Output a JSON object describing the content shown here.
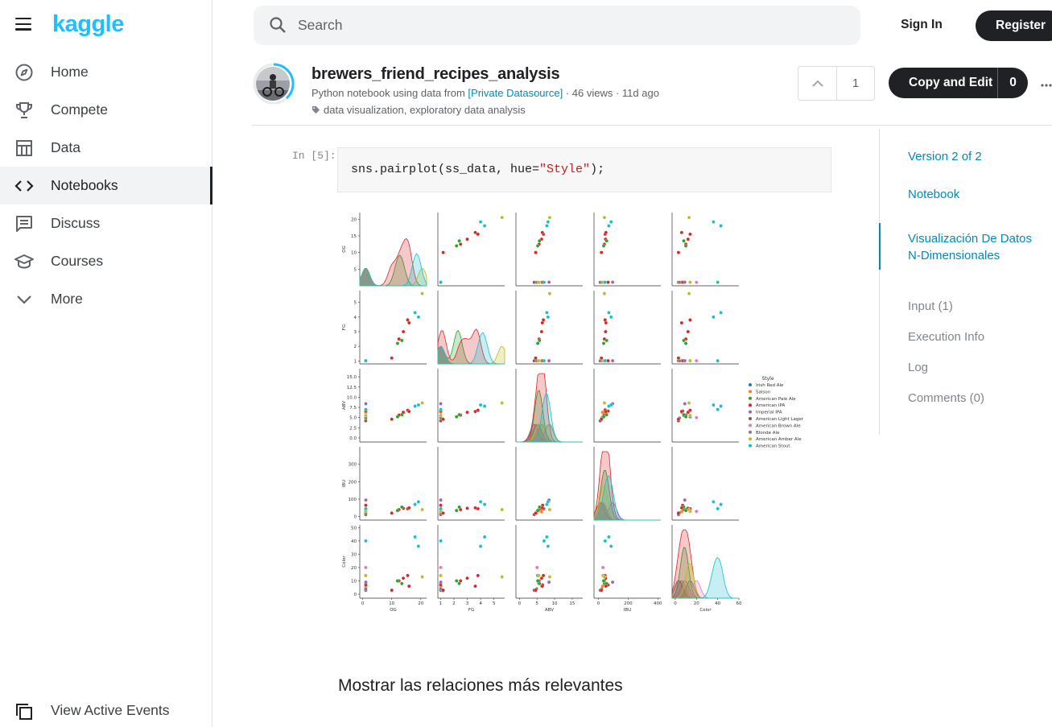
{
  "brand": {
    "logo": "kaggle"
  },
  "nav": {
    "items": [
      {
        "label": "Home",
        "icon": "compass-icon",
        "active": false
      },
      {
        "label": "Compete",
        "icon": "trophy-icon",
        "active": false
      },
      {
        "label": "Data",
        "icon": "table-icon",
        "active": false
      },
      {
        "label": "Notebooks",
        "icon": "code-icon",
        "active": true
      },
      {
        "label": "Discuss",
        "icon": "comment-icon",
        "active": false
      },
      {
        "label": "Courses",
        "icon": "school-icon",
        "active": false
      },
      {
        "label": "More",
        "icon": "chevron-down-icon",
        "active": false
      }
    ],
    "view_active_events": "View Active Events"
  },
  "header": {
    "search_placeholder": "Search",
    "sign_in": "Sign In",
    "register": "Register"
  },
  "notebook": {
    "title": "brewers_friend_recipes_analysis",
    "meta_prefix": "Python notebook using data from",
    "datasource": "[Private Datasource]",
    "meta_suffix": "· 46 views · 11d ago",
    "tags": "data visualization, exploratory data analysis",
    "votes": "1",
    "copy_edit_label": "Copy and Edit",
    "copy_edit_count": "0"
  },
  "toc": {
    "version": "Version 2 of 2",
    "notebook": "Notebook",
    "section": "Visualización De Datos N-Dimensionales",
    "input": "Input (1)",
    "execution_info": "Execution Info",
    "log": "Log",
    "comments": "Comments (0)"
  },
  "cell": {
    "prompt": "In [5]:",
    "code_prefix": "sns.pairplot(ss_data, hue=",
    "code_string": "\"Style\"",
    "code_suffix": ");"
  },
  "chart_data": {
    "type": "scatter",
    "variables": [
      "OG",
      "FG",
      "ABV",
      "IBU",
      "Color"
    ],
    "legend_title": "Style",
    "legend": [
      {
        "name": "Irish Red Ale",
        "color": "#1f77b4"
      },
      {
        "name": "Saison",
        "color": "#ff7f0e"
      },
      {
        "name": "American Pale Ale",
        "color": "#2ca02c"
      },
      {
        "name": "American IPA",
        "color": "#d62728"
      },
      {
        "name": "Imperial IPA",
        "color": "#9467bd"
      },
      {
        "name": "American Light Lager",
        "color": "#8c564b"
      },
      {
        "name": "American Brown Ale",
        "color": "#e377c2"
      },
      {
        "name": "Blonde Ale",
        "color": "#7f7f7f"
      },
      {
        "name": "American Amber Ale",
        "color": "#bcbd22"
      },
      {
        "name": "American Stout",
        "color": "#17becf"
      }
    ],
    "legend_placement": "right",
    "ticks": {
      "OG": [
        "5",
        "10",
        "15",
        "20"
      ],
      "FG": [
        "1",
        "2",
        "3",
        "4",
        "5"
      ],
      "ABV": [
        "0.0",
        "2.5",
        "5.0",
        "7.5",
        "10.0",
        "12.5",
        "15.0"
      ],
      "IBU": [
        "0",
        "100",
        "200",
        "300"
      ],
      "Color": [
        "0",
        "10",
        "20",
        "30",
        "40",
        "50"
      ]
    },
    "x_ticks": {
      "OG": [
        "0",
        "10",
        "20"
      ],
      "FG": [
        "1",
        "2",
        "3",
        "4",
        "5"
      ],
      "ABV": [
        "0",
        "5",
        "10",
        "15"
      ],
      "IBU": [
        "0",
        "200",
        "400"
      ],
      "Color": [
        "0",
        "20",
        "40",
        "60"
      ]
    },
    "ranges": {
      "OG": [
        0,
        22
      ],
      "FG": [
        0.8,
        5.8
      ],
      "ABV": [
        -1,
        17
      ],
      "IBU": [
        -20,
        400
      ],
      "Color": [
        -3,
        52
      ],
      "xOG": [
        -1,
        22
      ],
      "xFG": [
        0.8,
        5.8
      ],
      "xABV": [
        -1,
        18
      ],
      "xIBU": [
        -30,
        420
      ],
      "xColor": [
        -3,
        60
      ]
    },
    "points": [
      {
        "OG": 1.05,
        "FG": 1.01,
        "ABV": 5.2,
        "IBU": 30,
        "Color": 14,
        "s": 0
      },
      {
        "OG": 1.06,
        "FG": 1.01,
        "ABV": 6.3,
        "IBU": 28,
        "Color": 6,
        "s": 1
      },
      {
        "OG": 1.055,
        "FG": 1.012,
        "ABV": 5.5,
        "IBU": 40,
        "Color": 8,
        "s": 2
      },
      {
        "OG": 1.065,
        "FG": 1.013,
        "ABV": 6.6,
        "IBU": 65,
        "Color": 7,
        "s": 3
      },
      {
        "OG": 1.08,
        "FG": 1.015,
        "ABV": 8.4,
        "IBU": 95,
        "Color": 9,
        "s": 4
      },
      {
        "OG": 1.04,
        "FG": 1.008,
        "ABV": 4.2,
        "IBU": 12,
        "Color": 3,
        "s": 5
      },
      {
        "OG": 1.05,
        "FG": 1.012,
        "ABV": 5.0,
        "IBU": 30,
        "Color": 20,
        "s": 6
      },
      {
        "OG": 1.048,
        "FG": 1.01,
        "ABV": 4.9,
        "IBU": 22,
        "Color": 4,
        "s": 7
      },
      {
        "OG": 1.055,
        "FG": 1.012,
        "ABV": 5.5,
        "IBU": 32,
        "Color": 14,
        "s": 8
      },
      {
        "OG": 1.07,
        "FG": 1.016,
        "ABV": 7.0,
        "IBU": 45,
        "Color": 40,
        "s": 9
      },
      {
        "OG": 12.5,
        "FG": 2.5,
        "ABV": 5.6,
        "IBU": 40,
        "Color": 10,
        "s": 3
      },
      {
        "OG": 14,
        "FG": 3.0,
        "ABV": 6.3,
        "IBU": 48,
        "Color": 12,
        "s": 3
      },
      {
        "OG": 13.5,
        "FG": 2.4,
        "ABV": 5.7,
        "IBU": 55,
        "Color": 8,
        "s": 2
      },
      {
        "OG": 15.5,
        "FG": 3.8,
        "ABV": 6.8,
        "IBU": 45,
        "Color": 14,
        "s": 3
      },
      {
        "OG": 18,
        "FG": 4.3,
        "ABV": 7.8,
        "IBU": 70,
        "Color": 43,
        "s": 9
      },
      {
        "OG": 20.5,
        "FG": 5.6,
        "ABV": 8.6,
        "IBU": 40,
        "Color": 13,
        "s": 8
      },
      {
        "OG": 10,
        "FG": 1.2,
        "ABV": 4.6,
        "IBU": 20,
        "Color": 3,
        "s": 3
      },
      {
        "OG": 12,
        "FG": 2.2,
        "ABV": 5.2,
        "IBU": 35,
        "Color": 10,
        "s": 2
      },
      {
        "OG": 16,
        "FG": 3.6,
        "ABV": 6.5,
        "IBU": 50,
        "Color": 6,
        "s": 3
      },
      {
        "OG": 19.2,
        "FG": 4.0,
        "ABV": 8.1,
        "IBU": 85,
        "Color": 36,
        "s": 9
      }
    ]
  },
  "section_title": "Mostrar las relaciones más relevantes"
}
